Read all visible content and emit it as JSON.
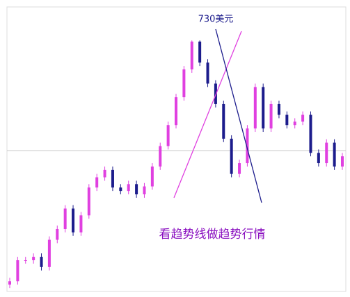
{
  "chart_data": {
    "type": "candlestick",
    "annotation_peak": "730美元",
    "annotation_text": "看趋势线做趋势行情",
    "ylim": [
      288,
      789
    ],
    "up_color": "#e040e0",
    "down_color": "#1c1c8c",
    "ohlc": [
      [
        300,
        312,
        294,
        306
      ],
      [
        306,
        349,
        300,
        343
      ],
      [
        343,
        349,
        337,
        343
      ],
      [
        343,
        355,
        337,
        349
      ],
      [
        349,
        355,
        325,
        331
      ],
      [
        331,
        385,
        325,
        379
      ],
      [
        379,
        404,
        373,
        398
      ],
      [
        398,
        440,
        392,
        434
      ],
      [
        434,
        440,
        386,
        392
      ],
      [
        392,
        428,
        386,
        422
      ],
      [
        422,
        477,
        416,
        471
      ],
      [
        471,
        495,
        465,
        489
      ],
      [
        489,
        508,
        483,
        502
      ],
      [
        502,
        508,
        465,
        471
      ],
      [
        471,
        477,
        459,
        465
      ],
      [
        465,
        483,
        459,
        477
      ],
      [
        477,
        483,
        453,
        459
      ],
      [
        459,
        479,
        453,
        473
      ],
      [
        473,
        514,
        467,
        508
      ],
      [
        508,
        550,
        502,
        544
      ],
      [
        544,
        587,
        538,
        581
      ],
      [
        581,
        636,
        575,
        630
      ],
      [
        630,
        685,
        624,
        679
      ],
      [
        679,
        730,
        673,
        728
      ],
      [
        728,
        730,
        685,
        691
      ],
      [
        691,
        697,
        648,
        654
      ],
      [
        654,
        660,
        612,
        618
      ],
      [
        618,
        624,
        551,
        557
      ],
      [
        557,
        563,
        489,
        495
      ],
      [
        495,
        520,
        489,
        514
      ],
      [
        514,
        581,
        508,
        575
      ],
      [
        575,
        654,
        569,
        648
      ],
      [
        648,
        654,
        569,
        575
      ],
      [
        575,
        624,
        569,
        618
      ],
      [
        618,
        624,
        593,
        599
      ],
      [
        599,
        605,
        575,
        581
      ],
      [
        581,
        593,
        575,
        587
      ],
      [
        587,
        605,
        581,
        599
      ],
      [
        599,
        605,
        526,
        532
      ],
      [
        532,
        538,
        508,
        514
      ],
      [
        514,
        556,
        508,
        550
      ],
      [
        550,
        556,
        502,
        508
      ],
      [
        508,
        532,
        502,
        526
      ]
    ]
  }
}
